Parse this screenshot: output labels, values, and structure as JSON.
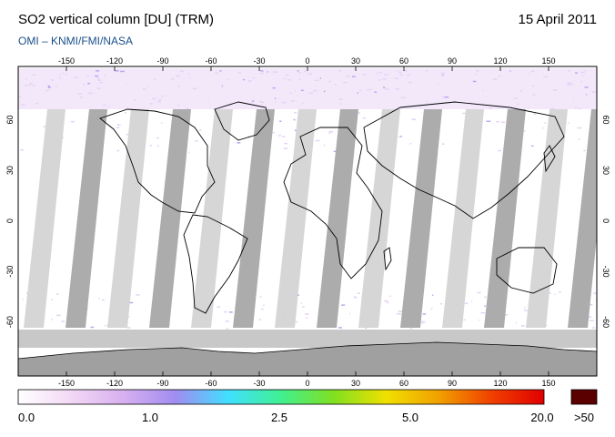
{
  "header": {
    "title": "SO2 vertical column [DU] (TRM)",
    "date": "15 April 2011",
    "credit": "OMI  –  KNMI/FMI/NASA"
  },
  "map": {
    "lon_ticks": [
      "-150",
      "-120",
      "-90",
      "-60",
      "-30",
      "0",
      "30",
      "60",
      "90",
      "120",
      "150"
    ],
    "lat_ticks": [
      "60",
      "30",
      "0",
      "-30",
      "-60"
    ],
    "colors": {
      "swath_light": "#d4d4d4",
      "swath_dark": "#a8a8a8",
      "antarctica": "#a0a0a0",
      "polar_band": "#c8c8c8",
      "coast": "#000000",
      "noise": "#e6d2f5"
    }
  },
  "colorbar": {
    "labels": [
      "0.0",
      "1.0",
      "2.5",
      "5.0",
      "20.0"
    ],
    "over_label": ">50",
    "stops": [
      "#ffffff",
      "#f3d8f5",
      "#d7b0f0",
      "#a08cf0",
      "#40e0ff",
      "#40f090",
      "#80e020",
      "#f0e000",
      "#f0a000",
      "#f04000",
      "#e00000"
    ],
    "over_color": "#5a0000"
  }
}
